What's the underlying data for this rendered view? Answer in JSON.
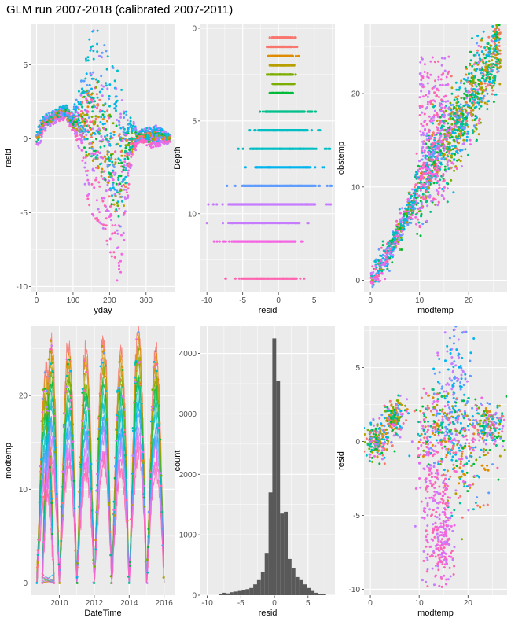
{
  "figure": {
    "title": "GLM run 2007-2018 (calibrated 2007-2011)",
    "panel_background": "#ebebeb",
    "grid_color": "#ffffff",
    "depth_palette": [
      "#f8766d",
      "#de8c00",
      "#b79f00",
      "#7cae00",
      "#00ba38",
      "#00c08b",
      "#00bfc4",
      "#00b4f0",
      "#619cff",
      "#c77cff",
      "#f564e3",
      "#ff64b0"
    ]
  },
  "chart_data": [
    {
      "id": "resid-vs-yday",
      "type": "scatter",
      "title": "",
      "xlabel": "yday",
      "ylabel": "resid",
      "xlim": [
        -14,
        378
      ],
      "ylim": [
        -10.4,
        7.8
      ],
      "xticks": [
        0,
        100,
        200,
        300
      ],
      "yticks": [
        -10,
        -5,
        0,
        5
      ],
      "grid": true,
      "colored_by": "Depth",
      "envelope": {
        "x": [
          0,
          10,
          20,
          40,
          60,
          80,
          100,
          120,
          135,
          150,
          165,
          180,
          195,
          210,
          220,
          230,
          240,
          255,
          270,
          290,
          310,
          330,
          350,
          365
        ],
        "upper": [
          0.4,
          1.2,
          1.6,
          1.8,
          2.1,
          2.3,
          2.0,
          3.5,
          5.8,
          7.2,
          7.5,
          6.8,
          5.6,
          4.8,
          4.8,
          3.7,
          2.5,
          1.5,
          1.0,
          0.6,
          0.8,
          0.9,
          0.5,
          0.4
        ],
        "lower": [
          -0.5,
          -0.3,
          0.5,
          0.9,
          1.2,
          1.3,
          0.3,
          -0.8,
          -3.5,
          -5.0,
          -5.5,
          -5.8,
          -7.2,
          -8.2,
          -9.6,
          -9.5,
          -6.8,
          -2.5,
          -0.8,
          -0.2,
          -0.6,
          -0.5,
          -0.4,
          -0.3
        ]
      }
    },
    {
      "id": "depth-vs-resid",
      "type": "scatter",
      "title": "",
      "xlabel": "resid",
      "ylabel": "Depth",
      "xlim": [
        -10.9,
        7.9
      ],
      "ylim": [
        -0.25,
        14.25
      ],
      "y_reversed": true,
      "xticks": [
        -10,
        -5,
        0,
        5
      ],
      "yticks": [
        0,
        5,
        10
      ],
      "grid": true,
      "rows": [
        {
          "depth": 0.5,
          "min": -1.2,
          "max": 2.4
        },
        {
          "depth": 1.0,
          "min": -1.6,
          "max": 2.6
        },
        {
          "depth": 1.5,
          "min": -1.4,
          "max": 2.8
        },
        {
          "depth": 2.0,
          "min": -1.2,
          "max": 2.2
        },
        {
          "depth": 2.5,
          "min": -1.6,
          "max": 2.4
        },
        {
          "depth": 3.0,
          "min": -0.8,
          "max": 2.2
        },
        {
          "depth": 3.5,
          "min": -1.2,
          "max": 2.0
        },
        {
          "depth": 4.5,
          "min": -2.6,
          "max": 5.2
        },
        {
          "depth": 5.5,
          "min": -4.0,
          "max": 5.8
        },
        {
          "depth": 6.5,
          "min": -5.6,
          "max": 7.2
        },
        {
          "depth": 7.5,
          "min": -4.6,
          "max": 6.4
        },
        {
          "depth": 8.5,
          "min": -7.2,
          "max": 7.4
        },
        {
          "depth": 9.5,
          "min": -9.8,
          "max": 7.3
        },
        {
          "depth": 10.5,
          "min": -10.0,
          "max": 4.2
        },
        {
          "depth": 11.5,
          "min": -9.0,
          "max": 3.4
        },
        {
          "depth": 13.5,
          "min": -7.4,
          "max": 3.6
        }
      ]
    },
    {
      "id": "obstemp-vs-modtemp",
      "type": "scatter",
      "title": "",
      "xlabel": "modtemp",
      "ylabel": "obstemp",
      "xlim": [
        -1.3,
        27.8
      ],
      "ylim": [
        -1.3,
        27.5
      ],
      "xticks": [
        0,
        10,
        20
      ],
      "yticks": [
        0,
        10,
        20
      ],
      "grid": true,
      "centerline": {
        "x": [
          0,
          4,
          8,
          10,
          12,
          14,
          16,
          18,
          20,
          22,
          24,
          26.5
        ],
        "y": [
          0,
          3.2,
          7.5,
          9.5,
          12,
          14,
          15.5,
          17,
          19,
          21,
          23,
          26
        ]
      },
      "hotspot": {
        "x": [
          10,
          16
        ],
        "y": [
          8,
          24
        ]
      }
    },
    {
      "id": "modtemp-vs-datetime",
      "type": "line",
      "title": "",
      "xlabel": "DateTime",
      "ylabel": "modtemp",
      "xlim": [
        2008.4,
        2016.6
      ],
      "ylim": [
        -1.3,
        27.4
      ],
      "xticks": [
        2010,
        2012,
        2014,
        2016
      ],
      "yticks": [
        0,
        10,
        20
      ],
      "grid": true,
      "series": [
        {
          "year_start": 2008.7,
          "peak": 23
        },
        {
          "year_start": 2009,
          "peak": 26
        },
        {
          "year_start": 2010,
          "peak": 25.5
        },
        {
          "year_start": 2011,
          "peak": 25
        },
        {
          "year_start": 2012,
          "peak": 26
        },
        {
          "year_start": 2013,
          "peak": 25
        },
        {
          "year_start": 2014,
          "peak": 27
        },
        {
          "year_start": 2015,
          "peak": 25
        }
      ]
    },
    {
      "id": "resid-histogram",
      "type": "bar",
      "title": "",
      "xlabel": "resid",
      "ylabel": "count",
      "xlim": [
        -11,
        9
      ],
      "ylim": [
        0,
        4450
      ],
      "xticks": [
        -10,
        -5,
        0,
        5
      ],
      "yticks": [
        0,
        1000,
        2000,
        3000,
        4000
      ],
      "grid": true,
      "bin_width": 0.57,
      "bins": [
        {
          "x": -8.0,
          "count": 20
        },
        {
          "x": -7.43,
          "count": 40
        },
        {
          "x": -6.86,
          "count": 30
        },
        {
          "x": -6.29,
          "count": 50
        },
        {
          "x": -5.72,
          "count": 60
        },
        {
          "x": -5.15,
          "count": 70
        },
        {
          "x": -4.58,
          "count": 80
        },
        {
          "x": -4.01,
          "count": 100
        },
        {
          "x": -3.44,
          "count": 120
        },
        {
          "x": -2.87,
          "count": 180
        },
        {
          "x": -2.3,
          "count": 250
        },
        {
          "x": -1.73,
          "count": 380
        },
        {
          "x": -1.16,
          "count": 700
        },
        {
          "x": -0.59,
          "count": 1700
        },
        {
          "x": -0.02,
          "count": 4250
        },
        {
          "x": 0.55,
          "count": 3550
        },
        {
          "x": 1.12,
          "count": 1350
        },
        {
          "x": 1.69,
          "count": 1380
        },
        {
          "x": 2.26,
          "count": 600
        },
        {
          "x": 2.83,
          "count": 450
        },
        {
          "x": 3.4,
          "count": 300
        },
        {
          "x": 3.97,
          "count": 250
        },
        {
          "x": 4.54,
          "count": 180
        },
        {
          "x": 5.11,
          "count": 120
        },
        {
          "x": 5.68,
          "count": 70
        },
        {
          "x": 6.25,
          "count": 40
        },
        {
          "x": 6.82,
          "count": 25
        },
        {
          "x": 7.39,
          "count": 15
        }
      ]
    },
    {
      "id": "resid-vs-modtemp",
      "type": "scatter",
      "title": "",
      "xlabel": "modtemp",
      "ylabel": "resid",
      "xlim": [
        -1.3,
        28
      ],
      "ylim": [
        -10.4,
        7.8
      ],
      "xticks": [
        0,
        10,
        20
      ],
      "yticks": [
        -10,
        -5,
        0,
        5
      ],
      "grid": true,
      "clusters": [
        {
          "cx": 1.5,
          "cy": 0,
          "sx": 1.2,
          "sy": 0.6
        },
        {
          "cx": 5,
          "cy": 1.6,
          "sx": 1.0,
          "sy": 0.6
        },
        {
          "cx": 12.5,
          "cy": -3.5,
          "sx": 1.2,
          "sy": 3.2
        },
        {
          "cx": 17,
          "cy": 3,
          "sx": 2.0,
          "sy": 2.5
        },
        {
          "cx": 20,
          "cy": -1,
          "sx": 3.0,
          "sy": 2.0
        },
        {
          "cx": 24,
          "cy": 1,
          "sx": 2.0,
          "sy": 0.8
        },
        {
          "cx": 14,
          "cy": 1,
          "sx": 2.5,
          "sy": 1.2
        },
        {
          "cx": 15,
          "cy": -6.5,
          "sx": 1.0,
          "sy": 2.0
        }
      ]
    }
  ]
}
